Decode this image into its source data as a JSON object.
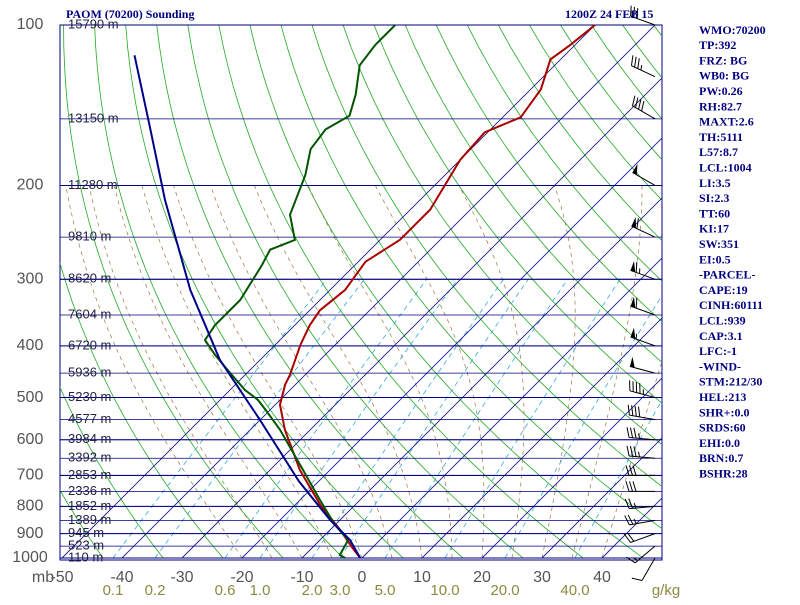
{
  "chart_data": {
    "type": "skewt",
    "title": "PAOM (70200) Sounding",
    "time": "1200Z 24 FEB 15",
    "y_unit": "mb",
    "log_y": true,
    "ylim": [
      100,
      1000
    ],
    "yticks": [
      100,
      200,
      300,
      400,
      500,
      600,
      700,
      800,
      900,
      1000
    ],
    "xlim": [
      -50,
      50
    ],
    "xticks": [
      -50,
      -40,
      -30,
      -20,
      -10,
      0,
      10,
      20,
      30,
      40
    ],
    "height_ticks": [
      {
        "value": 100,
        "label": "15790 m"
      },
      {
        "value": 150,
        "label": "13150 m"
      },
      {
        "value": 200,
        "label": "11280 m"
      },
      {
        "value": 250,
        "label": "9810 m"
      },
      {
        "value": 300,
        "label": "8620 m"
      },
      {
        "value": 350,
        "label": "7604 m"
      },
      {
        "value": 400,
        "label": "6720 m"
      },
      {
        "value": 450,
        "label": "5936 m"
      },
      {
        "value": 500,
        "label": "5230 m"
      },
      {
        "value": 550,
        "label": "4577 m"
      },
      {
        "value": 600,
        "label": "3984 m"
      },
      {
        "value": 650,
        "label": "3392 m"
      },
      {
        "value": 700,
        "label": "2853 m"
      },
      {
        "value": 750,
        "label": "2336 m"
      },
      {
        "value": 800,
        "label": "1852 m"
      },
      {
        "value": 850,
        "label": "1389 m"
      },
      {
        "value": 900,
        "label": "945 m"
      },
      {
        "value": 950,
        "label": "523 m"
      },
      {
        "value": 1000,
        "label": "110 m"
      }
    ],
    "series": [
      {
        "color": "#aa0000",
        "pressure": [
          1000,
          957,
          886,
          795,
          684,
          575,
          516,
          473,
          454,
          398,
          366,
          343,
          314,
          278,
          253,
          222,
          200,
          179,
          159,
          149,
          132,
          116,
          109,
          100
        ],
        "values": [
          -0.3,
          -3.3,
          -8.3,
          -15.8,
          -25,
          -34.2,
          -39.2,
          -41.7,
          -42.5,
          -45.8,
          -47.5,
          -48.3,
          -47.5,
          -48.8,
          -46.7,
          -46.7,
          -48.3,
          -50,
          -50.5,
          -47,
          -48.3,
          -51.7,
          -50.8,
          -50
        ]
      },
      {
        "color": "#005500",
        "pressure": [
          1000,
          987,
          925,
          867,
          778,
          669,
          575,
          527,
          505,
          484,
          444,
          416,
          390,
          366,
          328,
          282,
          264,
          253,
          227,
          191,
          171,
          157,
          148,
          135,
          119,
          109,
          100
        ],
        "values": [
          -2.8,
          -4.2,
          -5.3,
          -10,
          -16.7,
          -25.8,
          -35,
          -40.8,
          -43.7,
          -47.5,
          -53.7,
          -58.3,
          -62.5,
          -63.3,
          -63.3,
          -65.5,
          -66.7,
          -64.2,
          -69.2,
          -73.3,
          -76.7,
          -77.5,
          -75.8,
          -78.3,
          -82.5,
          -83.3,
          -83.3
        ]
      },
      {
        "color": "#000088",
        "pressure": [
          1000,
          925,
          848,
          718,
          551,
          425,
          314,
          213,
          157,
          114
        ],
        "values": [
          -0.3,
          -5,
          -11.7,
          -23.3,
          -40,
          -56.7,
          -73.3,
          -92.5,
          -106.7,
          -121.7
        ]
      }
    ],
    "mixing_ratio_labels": [
      "0.1",
      "0.2",
      "0.6",
      "1.0",
      "2.0",
      "3.0",
      "5.0",
      "10.0",
      "20.0",
      "40.0"
    ],
    "mixing_ratio_unit": "g/kg",
    "wind": {
      "pressure": [
        1000,
        950,
        900,
        850,
        800,
        750,
        700,
        650,
        600,
        550,
        500,
        450,
        400,
        350,
        300,
        250,
        200,
        150,
        125,
        100
      ],
      "direction": [
        210,
        230,
        250,
        260,
        265,
        270,
        270,
        275,
        275,
        280,
        285,
        285,
        290,
        290,
        290,
        295,
        300,
        300,
        295,
        290
      ],
      "speed": [
        10,
        15,
        20,
        25,
        25,
        30,
        30,
        35,
        35,
        40,
        45,
        50,
        55,
        60,
        65,
        60,
        50,
        40,
        35,
        30
      ]
    },
    "indices": [
      "WMO:70200",
      "TP:392",
      "FRZ: BG",
      "WB0: BG",
      "PW:0.26",
      "RH:82.7",
      "MAXT:2.6",
      "TH:5111",
      "L57:8.7",
      "LCL:1004",
      "LI:3.5",
      "SI:2.3",
      "TT:60",
      "KI:17",
      "SW:351",
      "EI:0.5",
      "-PARCEL-",
      "CAPE:19",
      "CINH:60111",
      "LCL:939",
      "CAP:3.1",
      "LFC:-1",
      "-WIND-",
      "STM:212/30",
      "HEL:213",
      "SHR+:0.0",
      "SRDS:60",
      "EHI:0.0",
      "BRN:0.7",
      "BSHR:28"
    ]
  }
}
